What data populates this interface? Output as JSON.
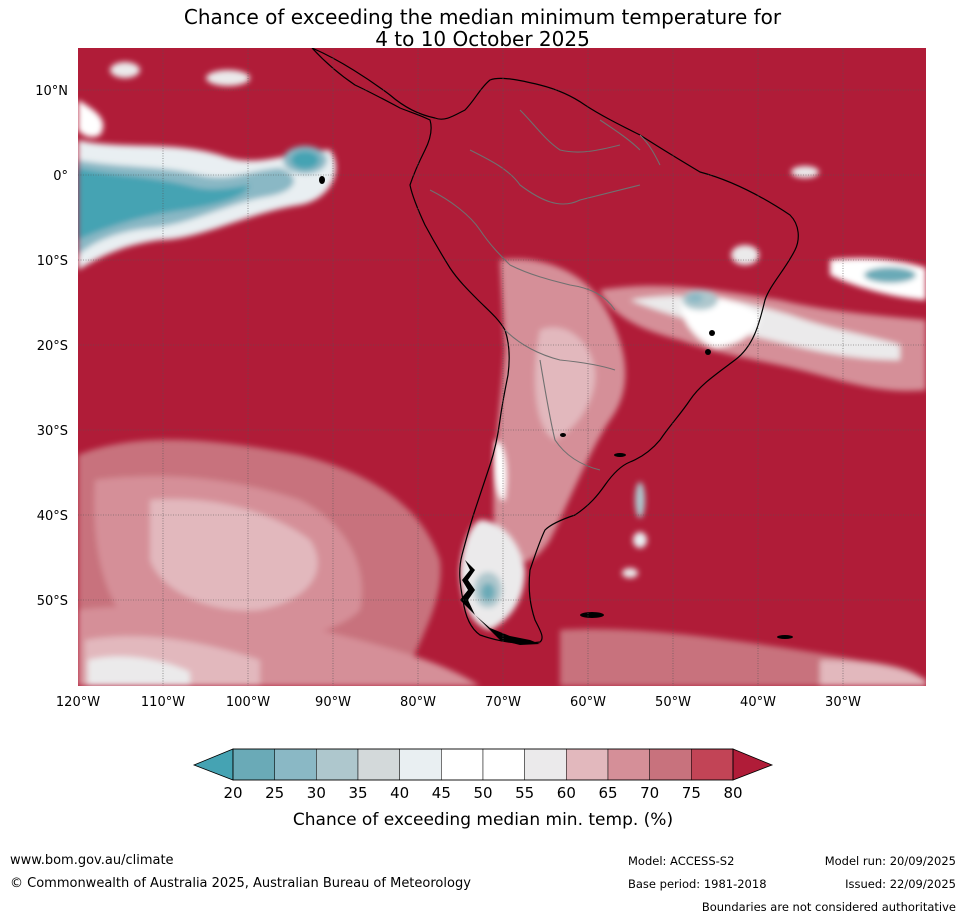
{
  "title": {
    "line1": "Chance of exceeding the median minimum temperature for",
    "line2": "4 to 10 October 2025"
  },
  "map": {
    "region": "South America and surrounding oceans",
    "lat_labels": [
      "10°N",
      "0°",
      "10°S",
      "20°S",
      "30°S",
      "40°S",
      "50°S"
    ],
    "lon_labels": [
      "120°W",
      "110°W",
      "100°W",
      "90°W",
      "80°W",
      "70°W",
      "60°W",
      "50°W",
      "40°W",
      "30°W"
    ]
  },
  "colorbar": {
    "ticks": [
      "20",
      "25",
      "30",
      "35",
      "40",
      "45",
      "50",
      "55",
      "60",
      "65",
      "70",
      "75",
      "80"
    ],
    "colors": {
      "below": "#45a3b3",
      "bins": [
        "#6aaab7",
        "#8ab8c5",
        "#aec7cd",
        "#d3d9da",
        "#e9eff2",
        "#ffffff",
        "#ffffff",
        "#ebeaeb",
        "#e2b8bd",
        "#d58f98",
        "#c8727d",
        "#c24456"
      ],
      "above": "#b01c38"
    },
    "label": "Chance of exceeding median min. temp. (%)"
  },
  "footer": {
    "website": "www.bom.gov.au/climate",
    "copyright": "© Commonwealth of Australia 2025, Australian Bureau of Meteorology",
    "model": "Model: ACCESS-S2",
    "base_period": "Base period: 1981-2018",
    "model_run": "Model run: 20/09/2025",
    "issued": "Issued: 22/09/2025",
    "disclaimer": "Boundaries are not considered authoritative"
  }
}
